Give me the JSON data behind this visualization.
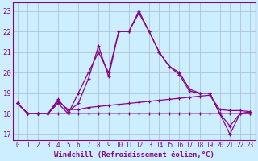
{
  "xlabel": "Windchill (Refroidissement éolien,°C)",
  "background_color": "#cceeff",
  "grid_color": "#aabbcc",
  "line_color": "#880088",
  "hours": [
    0,
    1,
    2,
    3,
    4,
    5,
    6,
    7,
    8,
    9,
    10,
    11,
    12,
    13,
    14,
    15,
    16,
    17,
    18,
    19,
    20,
    21,
    22,
    23
  ],
  "c1": [
    18.5,
    18.0,
    18.0,
    18.0,
    18.5,
    18.0,
    19.0,
    20.0,
    21.0,
    20.0,
    22.0,
    22.0,
    23.0,
    22.0,
    21.0,
    20.3,
    20.0,
    19.2,
    19.0,
    19.0,
    18.0,
    17.0,
    18.0,
    18.0
  ],
  "c2": [
    18.5,
    18.0,
    18.0,
    18.0,
    18.7,
    18.1,
    18.5,
    19.7,
    21.3,
    19.8,
    22.0,
    22.0,
    22.9,
    22.0,
    21.0,
    20.3,
    19.9,
    19.1,
    19.0,
    19.0,
    18.0,
    17.4,
    18.0,
    18.1
  ],
  "c3": [
    18.5,
    18.0,
    18.0,
    18.0,
    18.6,
    18.2,
    18.2,
    18.3,
    18.35,
    18.4,
    18.45,
    18.5,
    18.55,
    18.6,
    18.65,
    18.7,
    18.75,
    18.8,
    18.85,
    18.9,
    18.2,
    18.15,
    18.15,
    18.1
  ],
  "c4": [
    18.5,
    18.0,
    18.0,
    18.0,
    18.0,
    18.0,
    18.0,
    18.0,
    18.0,
    18.0,
    18.0,
    18.0,
    18.0,
    18.0,
    18.0,
    18.0,
    18.0,
    18.0,
    18.0,
    18.0,
    18.0,
    18.0,
    18.0,
    18.0
  ],
  "ylim": [
    16.7,
    23.4
  ],
  "yticks": [
    17,
    18,
    19,
    20,
    21,
    22,
    23
  ],
  "xlim": [
    -0.5,
    23.5
  ],
  "xtick_fontsize": 5.5,
  "ytick_fontsize": 6.5,
  "xlabel_fontsize": 6.5
}
